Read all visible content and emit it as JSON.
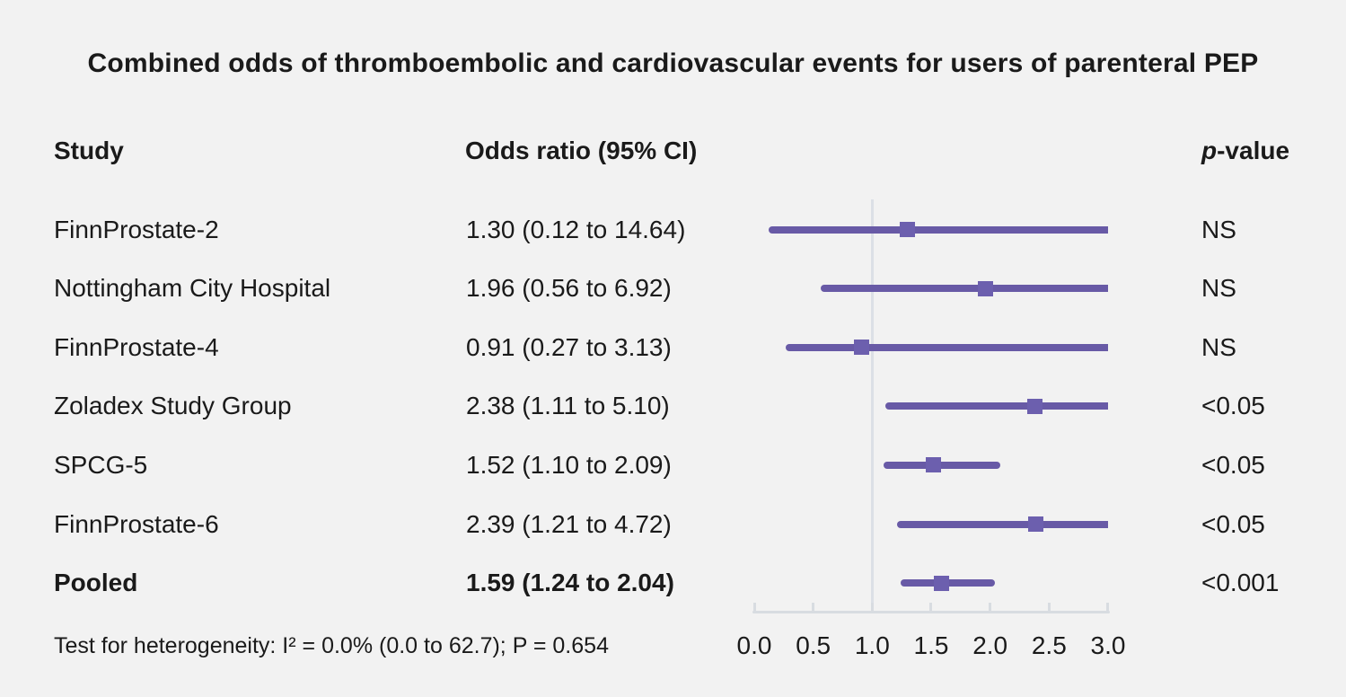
{
  "title": "Combined odds of thromboembolic and cardiovascular events for users of parenteral PEP",
  "header": {
    "study": "Study",
    "odds_ratio": "Odds ratio (95% CI)",
    "p_italic": "p",
    "p_rest": "-value"
  },
  "footnote": "Test for heterogeneity: I² = 0.0% (0.0 to 62.7); P = 0.654",
  "chart_data": {
    "type": "forest",
    "title": "Combined odds of thromboembolic and cardiovascular events for users of parenteral PEP",
    "xlim": [
      0.0,
      3.0
    ],
    "x_ticks": [
      0.0,
      0.5,
      1.0,
      1.5,
      2.0,
      2.5,
      3.0
    ],
    "x_tick_labels": [
      "0.0",
      "0.5",
      "1.0",
      "1.5",
      "2.0",
      "2.5",
      "3.0"
    ],
    "reference_line_x": 1.0,
    "grid": false,
    "legend": false,
    "rows": [
      {
        "study": "FinnProstate-2",
        "or": 1.3,
        "ci_low": 0.12,
        "ci_high": 14.64,
        "or_text": "1.30 (0.12 to 14.64)",
        "p_value": "NS",
        "bold": false
      },
      {
        "study": "Nottingham City Hospital",
        "or": 1.96,
        "ci_low": 0.56,
        "ci_high": 6.92,
        "or_text": "1.96 (0.56 to 6.92)",
        "p_value": "NS",
        "bold": false
      },
      {
        "study": "FinnProstate-4",
        "or": 0.91,
        "ci_low": 0.27,
        "ci_high": 3.13,
        "or_text": "0.91 (0.27 to 3.13)",
        "p_value": "NS",
        "bold": false
      },
      {
        "study": "Zoladex Study Group",
        "or": 2.38,
        "ci_low": 1.11,
        "ci_high": 5.1,
        "or_text": "2.38 (1.11 to 5.10)",
        "p_value": "<0.05",
        "bold": false
      },
      {
        "study": "SPCG-5",
        "or": 1.52,
        "ci_low": 1.1,
        "ci_high": 2.09,
        "or_text": "1.52 (1.10 to 2.09)",
        "p_value": "<0.05",
        "bold": false
      },
      {
        "study": "FinnProstate-6",
        "or": 2.39,
        "ci_low": 1.21,
        "ci_high": 4.72,
        "or_text": "2.39 (1.21 to 4.72)",
        "p_value": "<0.05",
        "bold": false
      },
      {
        "study": "Pooled",
        "or": 1.59,
        "ci_low": 1.24,
        "ci_high": 2.04,
        "or_text": "1.59 (1.24 to 2.04)",
        "p_value": "<0.001",
        "bold": true
      }
    ],
    "colors": {
      "bar": "#685aa6",
      "marker": "#6c5fae",
      "reference_line": "#dce0e6",
      "axis": "#d8dce1",
      "background": "#f2f2f2",
      "text": "#1a1a1a"
    }
  }
}
